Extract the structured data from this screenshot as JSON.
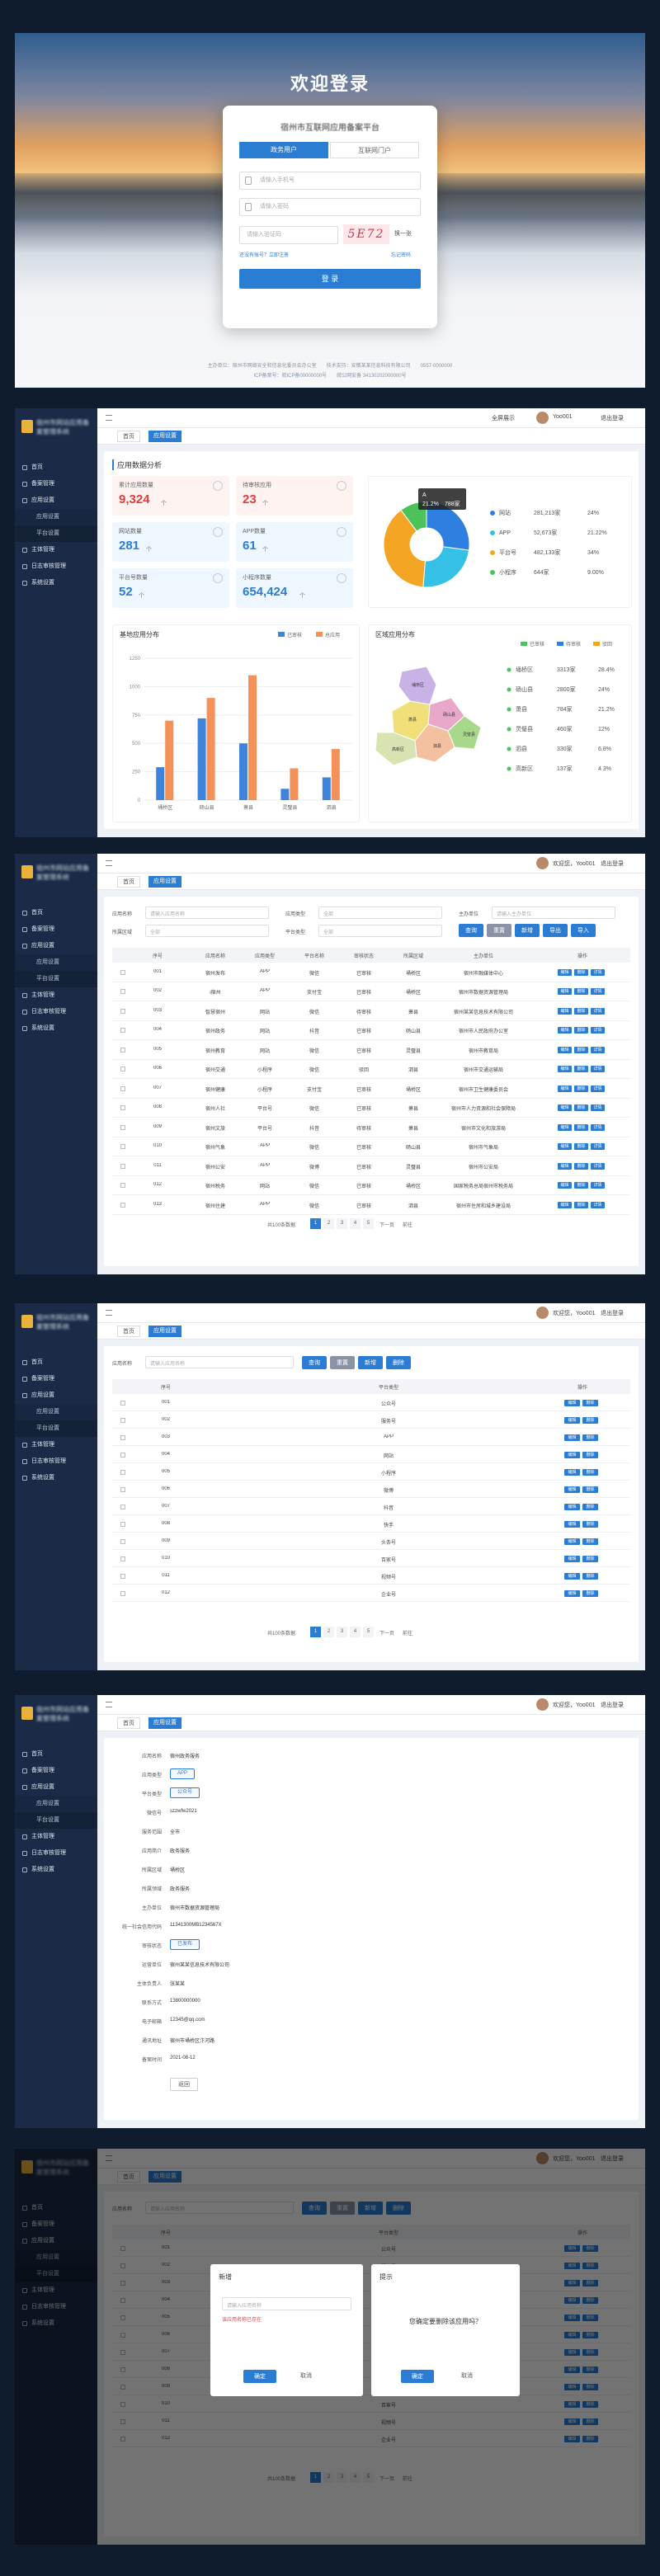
{
  "login": {
    "title": "欢迎登录",
    "system": "宿州市互联网应用备案平台",
    "tabs": [
      "政务用户",
      "互联网门户"
    ],
    "phone": "请输入手机号",
    "password": "请输入密码",
    "captcha": "请输入验证码",
    "captcha_code": "5E72",
    "refresh": "换一张",
    "register": "还没有账号？立即注册",
    "forgot": "忘记密码",
    "login": "登 录",
    "footer": [
      "主办单位：宿州市网络安全和信息化委员会办公室　　技术支持：安徽某某信息科技有限公司　　0557-0000000",
      "ICP备案号：皖ICP备00000000号　　皖公网安备 34130202000000号"
    ]
  },
  "nav": {
    "logo": "宿州市网站应用备案管理系统",
    "menu": [
      "首页",
      "备案管理",
      "应用设置",
      "主体管理",
      "日志审核管理",
      "系统设置"
    ],
    "submenu": [
      "应用设置",
      "平台设置"
    ],
    "fullscreen": "全屏展示",
    "user": "Yoo001",
    "greeting": "欢迎您，Yoo001",
    "logout": "退出登录",
    "tabs": [
      "首页",
      "应用设置"
    ]
  },
  "dashboard": {
    "title": "应用数据分析",
    "stats": [
      {
        "label": "累计应用数量",
        "value": "9,324",
        "unit": "个"
      },
      {
        "label": "待审核应用",
        "value": "23",
        "unit": "个"
      },
      {
        "label": "网站数量",
        "value": "281",
        "unit": "个"
      },
      {
        "label": "APP数量",
        "value": "61",
        "unit": "个"
      },
      {
        "label": "平台号数量",
        "value": "52",
        "unit": "个"
      },
      {
        "label": "小程序数量",
        "value": "654,424",
        "unit": "个"
      }
    ],
    "pie": {
      "type": "pie",
      "categories": [
        "网站",
        "APP",
        "平台号",
        "小程序"
      ],
      "values": [
        24,
        21.22,
        34,
        9
      ],
      "value_labels": [
        "24%",
        "21.22%",
        "34%",
        "9.00%"
      ],
      "counts": [
        "281,213家",
        "52,673家",
        "482,133家",
        "644家"
      ],
      "colors": [
        "#2f7fe0",
        "#35c0e6",
        "#f5a524",
        "#4cc25a"
      ],
      "tooltip": {
        "name": "A",
        "percent": "21.2%",
        "count": "788家"
      }
    },
    "bar": {
      "type": "bar",
      "title": "基地应用分布",
      "categories": [
        "埇桥区",
        "砀山县",
        "萧县",
        "灵璧县",
        "泗县"
      ],
      "series": [
        {
          "name": "已审核",
          "color": "#3f84dc",
          "values": [
            290,
            720,
            500,
            100,
            200
          ]
        },
        {
          "name": "总应用",
          "color": "#f39158",
          "values": [
            700,
            900,
            1100,
            280,
            450
          ]
        }
      ],
      "ylim": [
        0,
        1250
      ],
      "yticks": [
        0,
        250,
        500,
        750,
        1000,
        1250
      ],
      "grid": true
    },
    "map": {
      "title": "区域应用分布",
      "legend": [
        "已审核",
        "待审核",
        "驳回"
      ],
      "regions": [
        [
          "埇桥区",
          "3313家",
          "28.4%"
        ],
        [
          "砀山县",
          "2800家",
          "24%"
        ],
        [
          "萧县",
          "784家",
          "21.2%"
        ],
        [
          "灵璧县",
          "460家",
          "12%"
        ],
        [
          "泗县",
          "330家",
          "6.8%"
        ],
        [
          "高新区",
          "137家",
          "4.3%"
        ]
      ]
    }
  },
  "list1": {
    "filters": [
      {
        "label": "应用名称",
        "placeholder": "请输入应用名称"
      },
      {
        "label": "应用类型",
        "placeholder": "全部"
      },
      {
        "label": "主办单位",
        "placeholder": "请输入主办单位"
      },
      {
        "label": "所属区域",
        "placeholder": "全部"
      },
      {
        "label": "平台类型",
        "placeholder": "全部"
      }
    ],
    "buttons": [
      "查询",
      "重置",
      "新增",
      "导出",
      "导入"
    ],
    "columns": [
      "序号",
      "应用名称",
      "应用类型",
      "平台名称",
      "审核状态",
      "所属区域",
      "主办单位",
      "操作"
    ],
    "ops": [
      "编辑",
      "删除",
      "详情"
    ],
    "rows": [
      [
        "001",
        "宿州发布",
        "APP",
        "微信",
        "已审核",
        "埇桥区",
        "宿州市融媒体中心"
      ],
      [
        "002",
        "i宿州",
        "APP",
        "支付宝",
        "已审核",
        "埇桥区",
        "宿州市数据资源管理局"
      ],
      [
        "003",
        "智慧宿州",
        "网站",
        "微信",
        "待审核",
        "萧县",
        "宿州某某信息技术有限公司"
      ],
      [
        "004",
        "宿州政务",
        "网站",
        "抖音",
        "已审核",
        "砀山县",
        "宿州市人民政府办公室"
      ],
      [
        "005",
        "宿州教育",
        "网站",
        "微信",
        "已审核",
        "灵璧县",
        "宿州市教育局"
      ],
      [
        "006",
        "宿州交通",
        "小程序",
        "微信",
        "驳回",
        "泗县",
        "宿州市交通运输局"
      ],
      [
        "007",
        "宿州健康",
        "小程序",
        "支付宝",
        "已审核",
        "埇桥区",
        "宿州市卫生健康委员会"
      ],
      [
        "008",
        "宿州人社",
        "平台号",
        "微信",
        "已审核",
        "萧县",
        "宿州市人力资源和社会保障局"
      ],
      [
        "009",
        "宿州文旅",
        "平台号",
        "抖音",
        "待审核",
        "萧县",
        "宿州市文化和旅游局"
      ],
      [
        "010",
        "宿州气象",
        "APP",
        "微信",
        "已审核",
        "砀山县",
        "宿州市气象局"
      ],
      [
        "011",
        "宿州公安",
        "APP",
        "微博",
        "已审核",
        "灵璧县",
        "宿州市公安局"
      ],
      [
        "012",
        "宿州税务",
        "网站",
        "微信",
        "已审核",
        "埇桥区",
        "国家税务总局宿州市税务局"
      ],
      [
        "013",
        "宿州住建",
        "APP",
        "微信",
        "已审核",
        "泗县",
        "宿州市住房和城乡建设局"
      ]
    ],
    "pager": {
      "total": "共100条数据",
      "pages": [
        "1",
        "2",
        "3",
        "4",
        "5"
      ],
      "next": "下一页",
      "goto": "前往"
    }
  },
  "list2": {
    "filter": {
      "label": "应用名称",
      "placeholder": "请输入应用名称"
    },
    "buttons": [
      "查询",
      "重置",
      "新增",
      "删除"
    ],
    "columns": [
      "序号",
      "平台类型",
      "操作"
    ],
    "ops": [
      "编辑",
      "删除"
    ],
    "rows": [
      [
        "001",
        "公众号"
      ],
      [
        "002",
        "服务号"
      ],
      [
        "003",
        "APP"
      ],
      [
        "004",
        "网站"
      ],
      [
        "005",
        "小程序"
      ],
      [
        "006",
        "微博"
      ],
      [
        "007",
        "抖音"
      ],
      [
        "008",
        "快手"
      ],
      [
        "009",
        "头条号"
      ],
      [
        "010",
        "百家号"
      ],
      [
        "011",
        "视频号"
      ],
      [
        "012",
        "企业号"
      ]
    ],
    "pager": {
      "total": "共100条数据",
      "pages": [
        "1",
        "2",
        "3",
        "4",
        "5"
      ],
      "next": "下一页",
      "goto": "前往"
    }
  },
  "detail": {
    "fields": [
      {
        "label": "应用名称",
        "value": "宿州政务服务"
      },
      {
        "label": "应用类型",
        "tag": "APP"
      },
      {
        "label": "平台类型",
        "tag": "公众号"
      },
      {
        "label": "微信号",
        "value": "szzwfw2021"
      },
      {
        "label": "服务范围",
        "value": "全市"
      },
      {
        "label": "应用简介",
        "value": "政务服务"
      },
      {
        "label": "所属区域",
        "value": "埇桥区"
      },
      {
        "label": "所属领域",
        "value": "政务服务"
      },
      {
        "label": "主办单位",
        "value": "宿州市数据资源管理局"
      },
      {
        "label": "统一社会信用代码",
        "value": "11341300MB1234567X"
      },
      {
        "label": "审核状态",
        "tag": "已发布"
      },
      {
        "label": "运营单位",
        "value": "宿州某某信息技术有限公司"
      },
      {
        "label": "主体负责人",
        "value": "张某某"
      },
      {
        "label": "联系方式",
        "value": "13800000000"
      },
      {
        "label": "电子邮箱",
        "value": "12345@qq.com"
      },
      {
        "label": "通讯地址",
        "value": "宿州市埇桥区汴河路"
      },
      {
        "label": "备案时间",
        "value": "2021-08-12"
      }
    ],
    "back": "返回"
  },
  "modals": {
    "add": {
      "title": "新增",
      "placeholder": "请输入应用名称",
      "error": "该应用名称已存在",
      "ok": "确定",
      "cancel": "取消"
    },
    "confirm": {
      "title": "提示",
      "message": "您确定要删除该应用吗？",
      "ok": "确定",
      "cancel": "取消"
    }
  }
}
